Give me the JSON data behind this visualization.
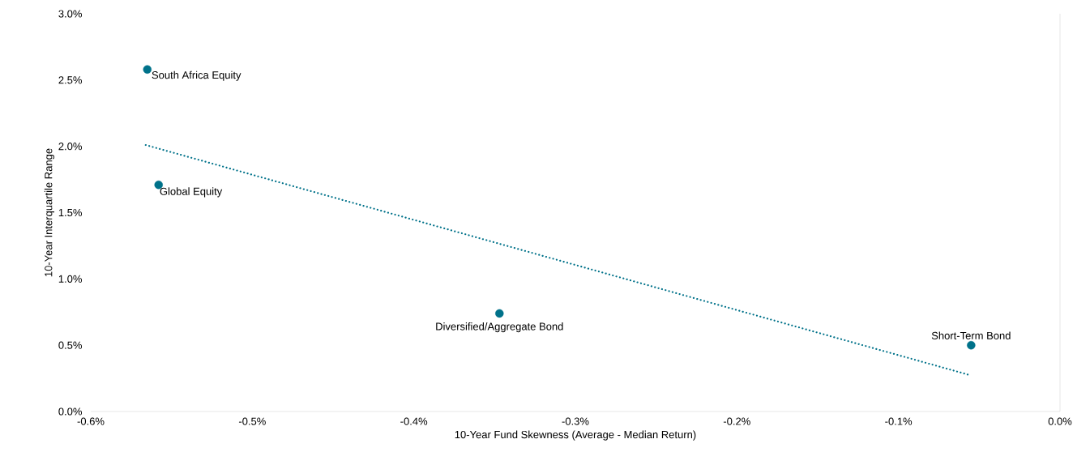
{
  "chart_data": {
    "type": "scatter",
    "xlabel": "10-Year Fund Skewness (Average - Median Return)",
    "ylabel": "10-Year Interquartile Range",
    "xlim": [
      -0.6,
      0
    ],
    "ylim": [
      0,
      3
    ],
    "xticks": [
      {
        "value": -0.6,
        "label": "-0.6%"
      },
      {
        "value": -0.5,
        "label": "-0.5%"
      },
      {
        "value": -0.4,
        "label": "-0.4%"
      },
      {
        "value": -0.3,
        "label": "-0.3%"
      },
      {
        "value": -0.2,
        "label": "-0.2%"
      },
      {
        "value": -0.1,
        "label": "-0.1%"
      },
      {
        "value": 0,
        "label": "0.0%"
      }
    ],
    "yticks": [
      {
        "value": 0,
        "label": "0.0%"
      },
      {
        "value": 0.5,
        "label": "0.5%"
      },
      {
        "value": 1,
        "label": "1.0%"
      },
      {
        "value": 1.5,
        "label": "1.5%"
      },
      {
        "value": 2,
        "label": "2.0%"
      },
      {
        "value": 2.5,
        "label": "2.5%"
      },
      {
        "value": 3,
        "label": "3.0%"
      }
    ],
    "series": [
      {
        "color": "#00728a",
        "marker": "circle",
        "x": [
          -0.565,
          -0.558,
          -0.347,
          -0.055
        ],
        "values": [
          2.58,
          1.71,
          0.74,
          0.5
        ]
      },
      {
        "type": "line",
        "color": "#00728a",
        "marker": "none",
        "line_style": "dotted",
        "x": [
          -0.566,
          -0.056
        ],
        "values": [
          2.01,
          0.275
        ]
      }
    ],
    "annotations": [
      {
        "text": "South Africa Equity",
        "x": -0.565,
        "y": 2.58
      },
      {
        "text": "Global Equity",
        "x": -0.558,
        "y": 1.71
      },
      {
        "text": "Diversified/Aggregate Bond",
        "x": -0.347,
        "y": 0.74
      },
      {
        "text": "Short-Term Bond",
        "x": -0.055,
        "y": 0.5
      }
    ]
  }
}
